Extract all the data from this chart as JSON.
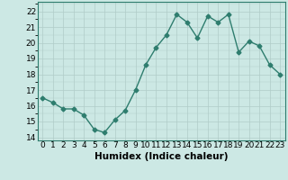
{
  "x": [
    0,
    1,
    2,
    3,
    4,
    5,
    6,
    7,
    8,
    9,
    10,
    11,
    12,
    13,
    14,
    15,
    16,
    17,
    18,
    19,
    20,
    21,
    22,
    23
  ],
  "y": [
    16.5,
    16.2,
    15.8,
    15.8,
    15.4,
    14.5,
    14.3,
    15.1,
    15.7,
    17.0,
    18.6,
    19.7,
    20.5,
    21.8,
    21.3,
    20.3,
    21.7,
    21.3,
    21.8,
    19.4,
    20.1,
    19.8,
    18.6,
    18.0
  ],
  "line_color": "#2e7d6e",
  "bg_color": "#cce8e4",
  "grid_color": "#b0ccc8",
  "xlabel": "Humidex (Indice chaleur)",
  "ylim": [
    13.8,
    22.6
  ],
  "xlim": [
    -0.5,
    23.5
  ],
  "yticks": [
    14,
    15,
    16,
    17,
    18,
    19,
    20,
    21,
    22
  ],
  "marker": "D",
  "marker_size": 2.5,
  "line_width": 1.0,
  "xlabel_fontsize": 7.5,
  "tick_fontsize": 6.5
}
